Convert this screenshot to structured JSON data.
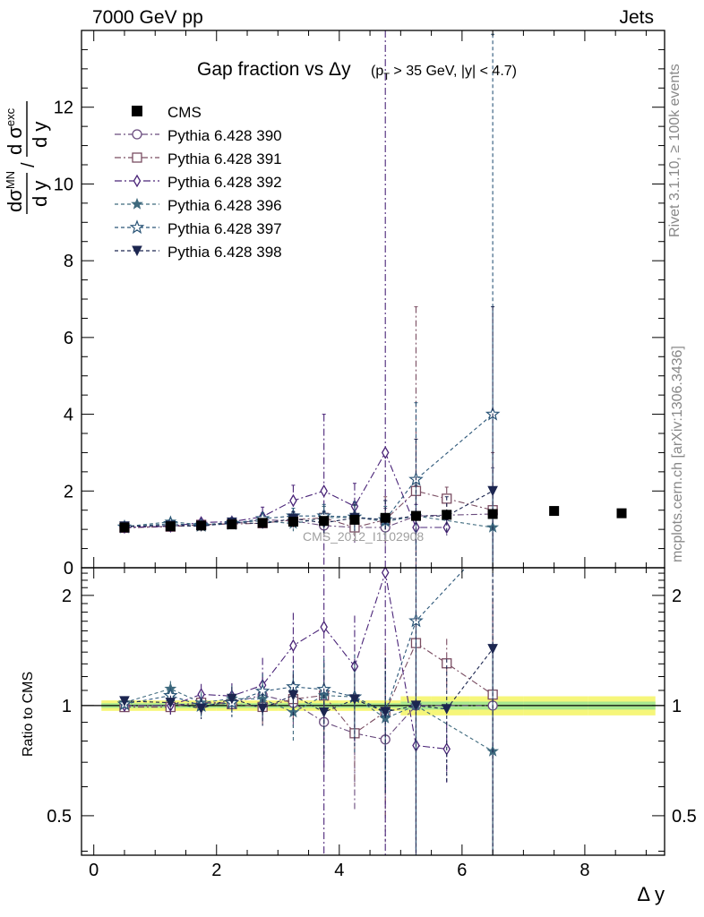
{
  "header": {
    "left": "7000 GeV pp",
    "right": "Jets"
  },
  "side_labels": {
    "rivet": "Rivet 3.1.10, ≥ 100k events",
    "mcplots": "mcplots.cern.ch [arXiv:1306.3436]"
  },
  "watermark": "CMS_2012_I1102908",
  "chart_data": {
    "type": "scatter",
    "title": "Gap fraction vs Δy",
    "title_cut": "(pT > 35 GeV, |y| < 4.7)",
    "xlabel": "Δ y",
    "ylabel_main": "dσMN/dy / dσexc/dy",
    "ylabel_ratio": "Ratio to CMS",
    "xlim": [
      -0.2,
      9.3
    ],
    "ylim_main": [
      0,
      14
    ],
    "ylim_ratio": [
      0.39,
      2.38
    ],
    "ratio_log_scale": true,
    "x_ticks": [
      "0",
      "2",
      "4",
      "6",
      "8"
    ],
    "y_ticks_main": [
      "0",
      "2",
      "4",
      "6",
      "8",
      "10",
      "12"
    ],
    "y_ticks_ratio": [
      "0.5",
      "1",
      "2"
    ],
    "legend_position": "top-left",
    "x": [
      0.5,
      1.25,
      1.75,
      2.25,
      2.75,
      3.25,
      3.75,
      4.25,
      4.75,
      5.25,
      5.75,
      6.5,
      7.5,
      8.6
    ],
    "cms": {
      "name": "CMS",
      "values": [
        1.05,
        1.08,
        1.1,
        1.13,
        1.17,
        1.2,
        1.22,
        1.25,
        1.3,
        1.35,
        1.38,
        1.4,
        1.48,
        1.42
      ],
      "band_stat": 0.025,
      "band_syst": 0.06
    },
    "series": [
      {
        "name": "Pythia 6.428 390",
        "color": "#6a4c7e",
        "marker": "circle-open",
        "dash": "7,3,2,3",
        "values": [
          1.05,
          1.08,
          1.12,
          1.15,
          1.25,
          1.22,
          1.1,
          1.05,
          1.05,
          1.35,
          null,
          1.4,
          null,
          null
        ],
        "errors": [
          0.03,
          0.05,
          0.07,
          0.08,
          0.15,
          0.18,
          0.3,
          0.4,
          0.5,
          0.8,
          null,
          1.2,
          null,
          null
        ]
      },
      {
        "name": "Pythia 6.428 391",
        "color": "#7a4d62",
        "marker": "square-open",
        "dash": "7,3,2,3",
        "values": [
          1.04,
          1.07,
          1.12,
          1.14,
          1.16,
          1.25,
          1.3,
          1.05,
          1.25,
          2.0,
          1.8,
          1.5,
          null,
          null
        ],
        "errors": [
          0.03,
          0.05,
          0.07,
          0.09,
          0.12,
          0.2,
          0.3,
          0.3,
          0.6,
          4.8,
          0.3,
          1.5,
          null,
          null
        ]
      },
      {
        "name": "Pythia 6.428 392",
        "color": "#4a2478",
        "marker": "diamond-open",
        "dash": "8,3,2,3",
        "values": [
          1.05,
          1.08,
          1.18,
          1.2,
          1.33,
          1.75,
          2.0,
          1.6,
          3.0,
          1.05,
          1.05,
          null,
          null,
          null
        ],
        "errors": [
          0.03,
          0.06,
          0.08,
          0.1,
          0.25,
          0.4,
          2.0,
          0.6,
          11.0,
          0.6,
          0.2,
          null,
          null,
          null
        ]
      },
      {
        "name": "Pythia 6.428 396",
        "color": "#3f6a7e",
        "marker": "star-filled",
        "dash": "4,3",
        "values": [
          1.07,
          1.2,
          1.12,
          1.18,
          1.22,
          1.15,
          1.3,
          1.32,
          1.2,
          1.35,
          null,
          1.05,
          null,
          null
        ],
        "errors": [
          0.03,
          0.06,
          0.08,
          0.1,
          0.14,
          0.2,
          0.3,
          0.3,
          0.4,
          0.8,
          null,
          1.0,
          null,
          null
        ]
      },
      {
        "name": "Pythia 6.428 397",
        "color": "#2b5678",
        "marker": "star-open",
        "dash": "4,3",
        "values": [
          1.06,
          1.15,
          1.1,
          1.15,
          1.28,
          1.35,
          1.35,
          1.32,
          1.25,
          2.3,
          null,
          4.0,
          null,
          null
        ],
        "errors": [
          0.03,
          0.06,
          0.08,
          0.1,
          0.15,
          0.2,
          0.3,
          0.4,
          0.5,
          2.0,
          null,
          9.9,
          null,
          null
        ]
      },
      {
        "name": "Pythia 6.428 398",
        "color": "#1c2650",
        "marker": "triangle-down-filled",
        "dash": "4,3",
        "values": [
          1.08,
          1.1,
          1.08,
          1.18,
          1.15,
          1.28,
          1.17,
          1.3,
          1.25,
          1.35,
          1.35,
          2.0,
          null,
          null
        ],
        "errors": [
          0.03,
          0.05,
          0.07,
          0.09,
          0.12,
          0.18,
          0.3,
          0.35,
          0.5,
          2.0,
          0.5,
          4.8,
          null,
          null
        ]
      }
    ]
  }
}
